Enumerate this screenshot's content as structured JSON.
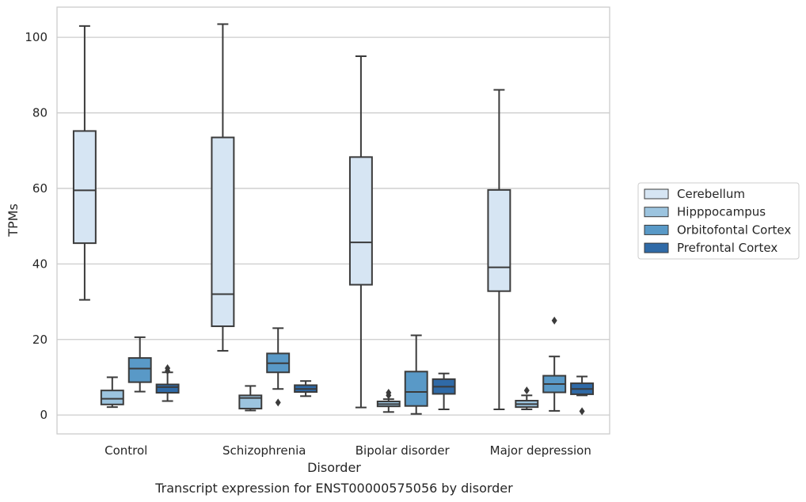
{
  "caption": "Transcript expression for ENST00000575056 by disorder",
  "chart_data": {
    "type": "box",
    "xlabel": "Disorder",
    "ylabel": "TPMs",
    "ylim": [
      -5,
      108
    ],
    "yticks": [
      0,
      20,
      40,
      60,
      80,
      100
    ],
    "grid": "horizontal",
    "legend_position": "right",
    "categories": [
      "Control",
      "Schizophrenia",
      "Bipolar disorder",
      "Major depression"
    ],
    "series": [
      {
        "name": "Cerebellum",
        "color": "#d6e5f3",
        "boxes": [
          {
            "whisker_low": 30.5,
            "q1": 45.5,
            "median": 59.5,
            "q3": 75.2,
            "whisker_high": 103,
            "outliers": []
          },
          {
            "whisker_low": 17,
            "q1": 23.5,
            "median": 32,
            "q3": 73.5,
            "whisker_high": 103.5,
            "outliers": []
          },
          {
            "whisker_low": 2,
            "q1": 34.5,
            "median": 45.7,
            "q3": 68.3,
            "whisker_high": 95,
            "outliers": []
          },
          {
            "whisker_low": 1.5,
            "q1": 32.8,
            "median": 39.1,
            "q3": 59.6,
            "whisker_high": 86.1,
            "outliers": []
          }
        ]
      },
      {
        "name": "Hipppocampus",
        "color": "#9cc4df",
        "boxes": [
          {
            "whisker_low": 2.1,
            "q1": 2.8,
            "median": 4.3,
            "q3": 6.5,
            "whisker_high": 10,
            "outliers": []
          },
          {
            "whisker_low": 1.2,
            "q1": 1.7,
            "median": 4.5,
            "q3": 5.2,
            "whisker_high": 7.7,
            "outliers": []
          },
          {
            "whisker_low": 0.8,
            "q1": 2.3,
            "median": 2.9,
            "q3": 3.6,
            "whisker_high": 4.2,
            "outliers": [
              5.2,
              5.9
            ]
          },
          {
            "whisker_low": 1.5,
            "q1": 2.1,
            "median": 2.9,
            "q3": 3.8,
            "whisker_high": 5.2,
            "outliers": [
              6.5
            ]
          }
        ]
      },
      {
        "name": "Orbitofontal Cortex",
        "color": "#5999c7",
        "boxes": [
          {
            "whisker_low": 6.2,
            "q1": 8.7,
            "median": 12.3,
            "q3": 15.1,
            "whisker_high": 20.6,
            "outliers": []
          },
          {
            "whisker_low": 6.9,
            "q1": 11.3,
            "median": 13.7,
            "q3": 16.3,
            "whisker_high": 23,
            "outliers": [
              3.3
            ]
          },
          {
            "whisker_low": 0.3,
            "q1": 2.4,
            "median": 6.1,
            "q3": 11.5,
            "whisker_high": 21.1,
            "outliers": []
          },
          {
            "whisker_low": 1.1,
            "q1": 6,
            "median": 8.2,
            "q3": 10.4,
            "whisker_high": 15.5,
            "outliers": [
              25
            ]
          }
        ]
      },
      {
        "name": "Prefrontal Cortex",
        "color": "#2f6aa7",
        "boxes": [
          {
            "whisker_low": 3.7,
            "q1": 5.9,
            "median": 7.4,
            "q3": 8.1,
            "whisker_high": 11.3,
            "outliers": [
              11.7,
              12.4
            ]
          },
          {
            "whisker_low": 5,
            "q1": 6.1,
            "median": 6.9,
            "q3": 7.9,
            "whisker_high": 9,
            "outliers": []
          },
          {
            "whisker_low": 1.5,
            "q1": 5.6,
            "median": 7.5,
            "q3": 9.5,
            "whisker_high": 11,
            "outliers": []
          },
          {
            "whisker_low": 5.2,
            "q1": 5.5,
            "median": 6.9,
            "q3": 8.4,
            "whisker_high": 10.2,
            "outliers": [
              1
            ]
          }
        ]
      }
    ]
  }
}
